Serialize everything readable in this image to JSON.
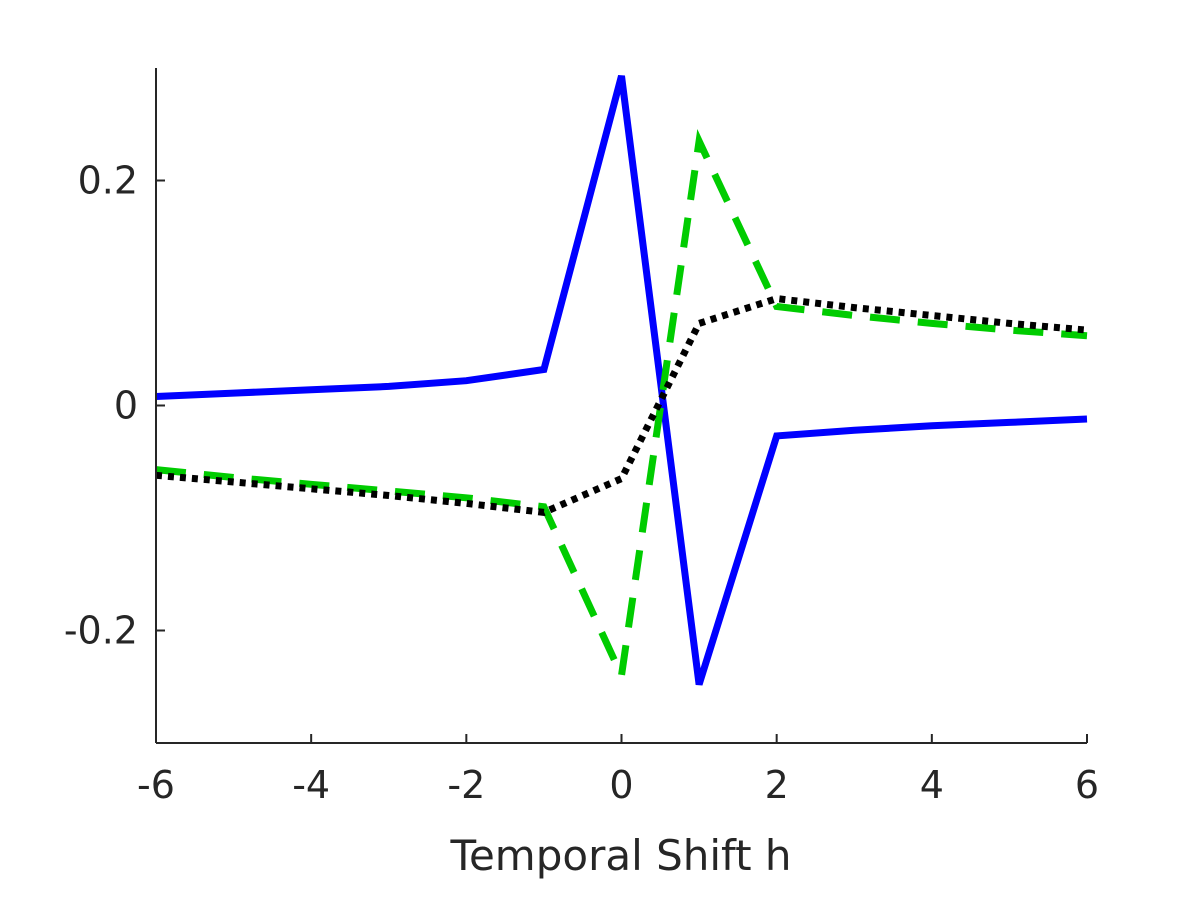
{
  "chart_data": {
    "type": "line",
    "title": "",
    "xlabel": "Temporal Shift h",
    "ylabel": "",
    "xlim": [
      -6,
      6
    ],
    "ylim": [
      -0.3,
      0.3
    ],
    "x_ticks": [
      -6,
      -4,
      -2,
      0,
      2,
      4,
      6
    ],
    "x_tick_labels": [
      "-6",
      "-4",
      "-2",
      "0",
      "2",
      "4",
      "6"
    ],
    "y_ticks": [
      -0.2,
      0,
      0.2
    ],
    "y_tick_labels": [
      "-0.2",
      "0",
      "0.2"
    ],
    "grid": false,
    "legend": false,
    "x": [
      -6,
      -5,
      -4,
      -3,
      -2,
      -1,
      0,
      1,
      2,
      3,
      4,
      5,
      6
    ],
    "series": [
      {
        "style": "solid",
        "color": "#0000FF",
        "values": [
          0.008,
          0.011,
          0.014,
          0.017,
          0.022,
          0.032,
          0.293,
          -0.248,
          -0.027,
          -0.022,
          -0.018,
          -0.015,
          -0.012
        ]
      },
      {
        "style": "dashed",
        "color": "#00CC00",
        "values": [
          -0.057,
          -0.064,
          -0.07,
          -0.076,
          -0.082,
          -0.09,
          -0.24,
          0.235,
          0.088,
          0.08,
          0.073,
          0.067,
          0.062
        ]
      },
      {
        "style": "dotted",
        "color": "#000000",
        "values": [
          -0.062,
          -0.068,
          -0.074,
          -0.08,
          -0.087,
          -0.095,
          -0.065,
          0.073,
          0.095,
          0.087,
          0.08,
          0.073,
          0.067
        ]
      }
    ]
  }
}
